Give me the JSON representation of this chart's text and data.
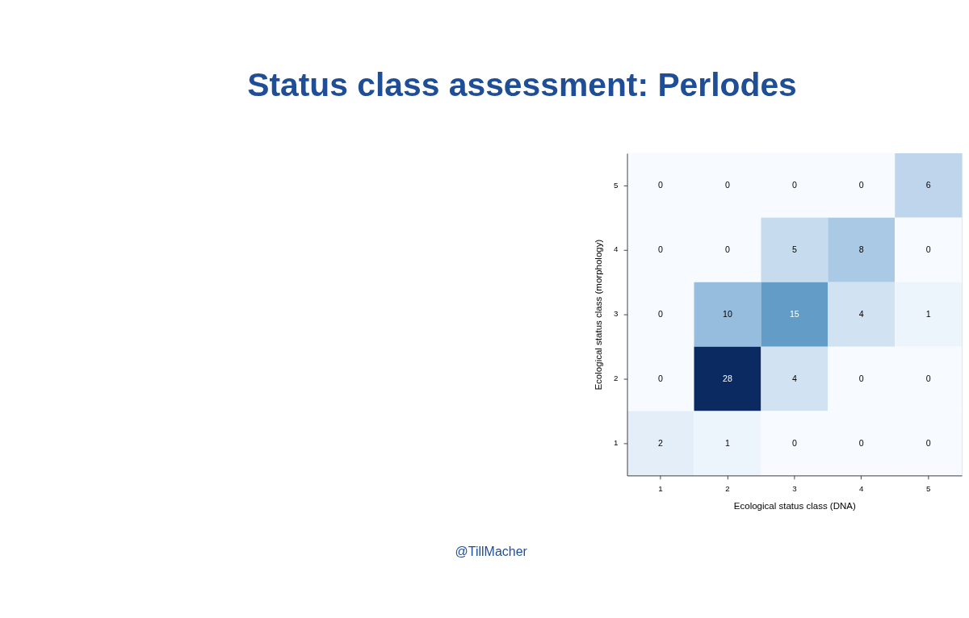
{
  "chart_data": {
    "type": "heatmap",
    "title": "Status class assessment: Perlodes",
    "xlabel": "Ecological status class (DNA)",
    "ylabel": "Ecological status class (morphology)",
    "categories": [
      "1",
      "2",
      "3",
      "4",
      "5"
    ],
    "y_categories": [
      "5",
      "4",
      "3",
      "2",
      "1"
    ],
    "cells": [
      [
        0,
        0,
        0,
        0,
        6
      ],
      [
        0,
        0,
        5,
        8,
        0
      ],
      [
        0,
        10,
        15,
        4,
        1
      ],
      [
        0,
        28,
        4,
        0,
        0
      ],
      [
        2,
        1,
        0,
        0,
        0
      ]
    ],
    "data_labels": true,
    "annotations": [
      "@TillMacher"
    ]
  }
}
